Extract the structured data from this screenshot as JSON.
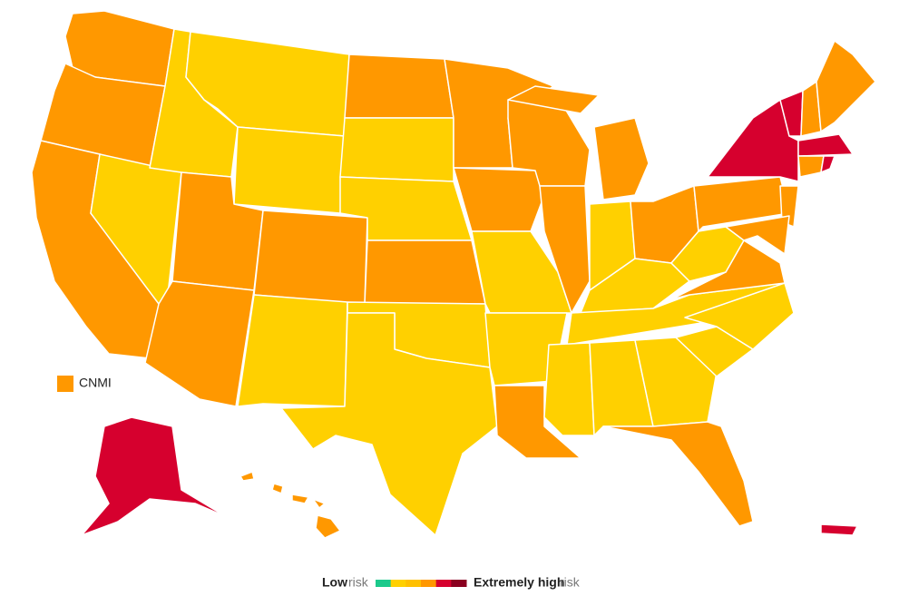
{
  "map": {
    "territory_label": "CNMI",
    "legend": {
      "low": "Low",
      "high": "Extremely high",
      "suffix": "risk",
      "colors": [
        "#1cc98b",
        "#ffd000",
        "#ffc000",
        "#ff9800",
        "#d6002e",
        "#8a0020"
      ]
    }
  }
}
